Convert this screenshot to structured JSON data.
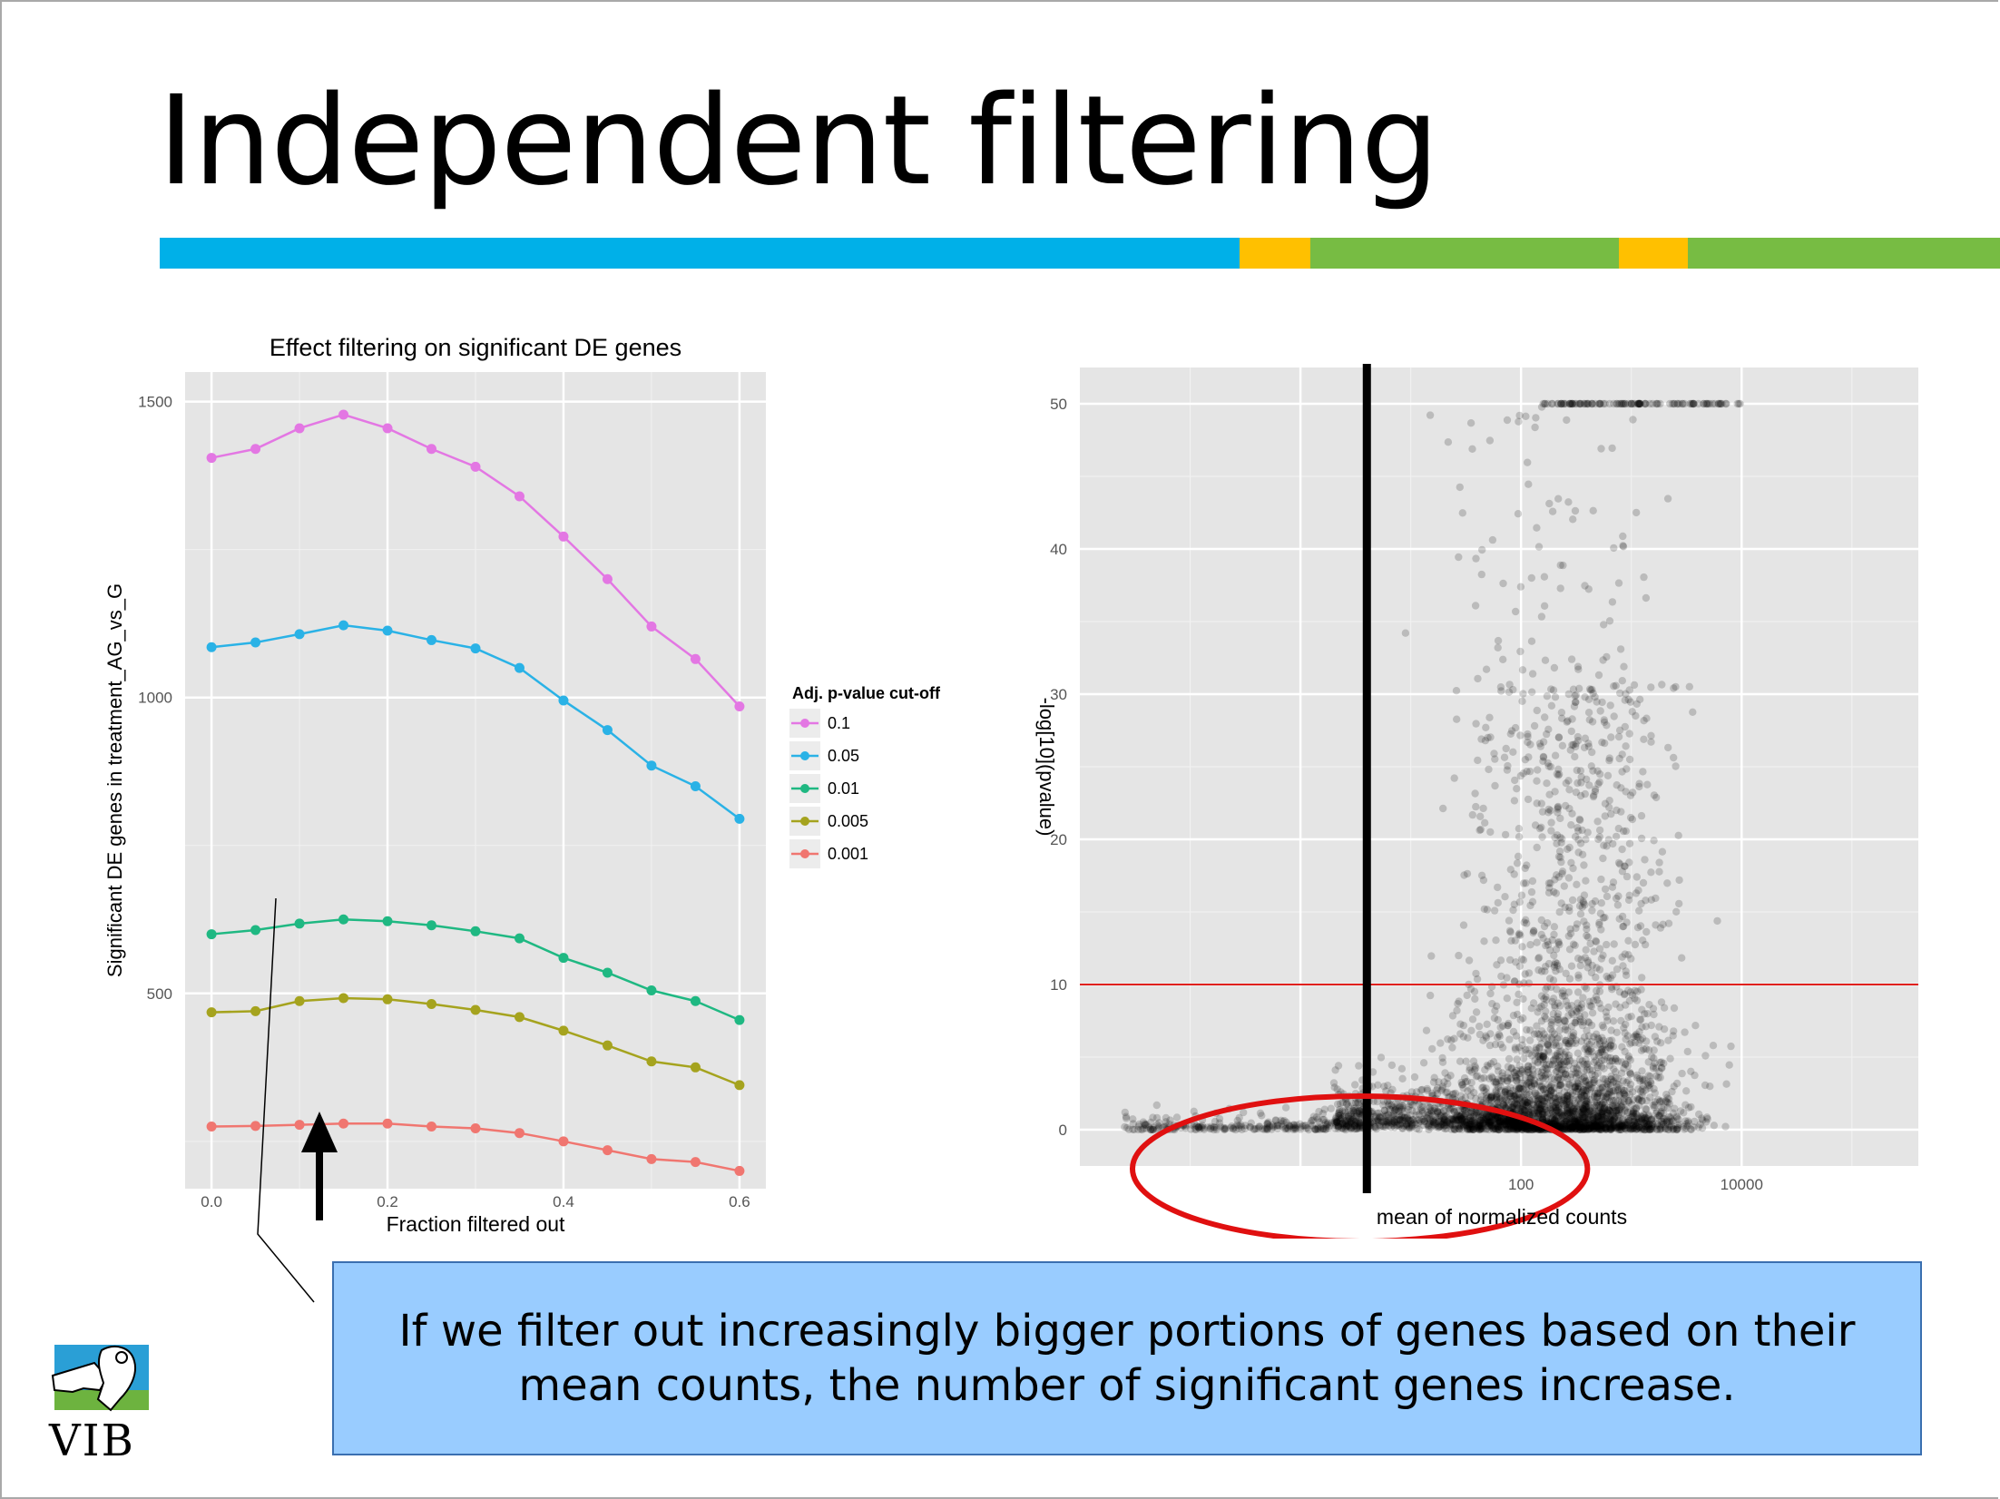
{
  "slide": {
    "title": "Independent filtering",
    "accent_bar_colors": [
      "#00b0e8",
      "#ffc000",
      "#77bc43"
    ],
    "callout_text": "If we filter out increasingly bigger portions of genes based on their mean counts, the number of significant genes increase.",
    "logo_text": "VIB"
  },
  "chart_data": [
    {
      "type": "line",
      "title": "Effect filtering on significant DE genes",
      "xlabel": "Fraction filtered out",
      "ylabel": "Significant DE genes in treatment_AG_vs_G",
      "x": [
        0.0,
        0.05,
        0.1,
        0.15,
        0.2,
        0.25,
        0.3,
        0.35,
        0.4,
        0.45,
        0.5,
        0.55,
        0.6
      ],
      "xlim": [
        -0.03,
        0.63
      ],
      "ylim": [
        170,
        1550
      ],
      "xticks": [
        0.0,
        0.2,
        0.4,
        0.6
      ],
      "xtick_labels": [
        "0.0",
        "0.2",
        "0.4",
        "0.6"
      ],
      "yticks": [
        500,
        1000,
        1500
      ],
      "ytick_labels": [
        "500",
        "1000",
        "1500"
      ],
      "grid": true,
      "legend_title": "Adj. p-value cut-off",
      "legend_position": "right",
      "series": [
        {
          "name": "0.1",
          "color": "#e377e3",
          "values": [
            1405,
            1420,
            1455,
            1478,
            1455,
            1420,
            1390,
            1340,
            1272,
            1200,
            1120,
            1065,
            985
          ]
        },
        {
          "name": "0.05",
          "color": "#2ab2e6",
          "values": [
            1085,
            1093,
            1107,
            1122,
            1113,
            1097,
            1083,
            1050,
            995,
            945,
            885,
            850,
            795
          ]
        },
        {
          "name": "0.01",
          "color": "#1fb882",
          "values": [
            600,
            607,
            618,
            625,
            622,
            615,
            605,
            593,
            560,
            535,
            505,
            487,
            455
          ]
        },
        {
          "name": "0.005",
          "color": "#a5a31e",
          "values": [
            468,
            470,
            487,
            492,
            490,
            482,
            472,
            460,
            437,
            412,
            385,
            375,
            345
          ]
        },
        {
          "name": "0.001",
          "color": "#f07670",
          "values": [
            275,
            276,
            278,
            280,
            280,
            275,
            272,
            264,
            250,
            235,
            220,
            215,
            200
          ]
        }
      ],
      "annotation": "up-arrow"
    },
    {
      "type": "scatter",
      "xlabel": "mean of normalized counts",
      "ylabel": "-log[10](pvalue)",
      "xscale": "log10",
      "xlim": [
        0.01,
        400000
      ],
      "ylim": [
        -2.5,
        52.5
      ],
      "xticks": [
        100,
        10000
      ],
      "xtick_labels": [
        "100",
        "10000"
      ],
      "yticks": [
        0,
        10,
        20,
        30,
        40,
        50
      ],
      "ytick_labels": [
        "0",
        "10",
        "20",
        "30",
        "40",
        "50"
      ],
      "grid": true,
      "point_color": "#000000",
      "hline_y": 10,
      "hline_color": "#e0201d",
      "vline_x": 4,
      "highlight_ellipse": {
        "x_range": [
          0.03,
          400
        ],
        "y_range": [
          -4,
          5.5
        ],
        "color": "#e01010"
      },
      "point_density": "low-count genes near -log10(p)=0 at left; dense cloud around 100-1000 counts rising to cap of 50"
    }
  ]
}
